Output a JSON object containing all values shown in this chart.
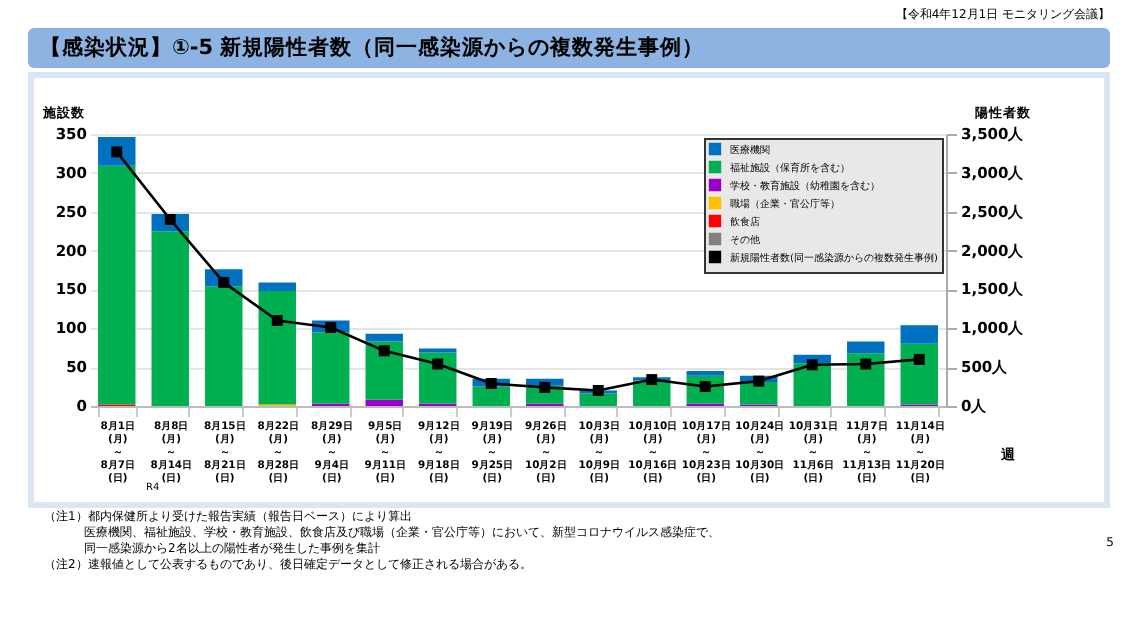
{
  "chart_data": {
    "type": "bar",
    "title": "【感染状況】①-5 新規陽性者数（同一感染源からの複数発生事例）",
    "ylabel": "施設数",
    "y2label": "陽性者数",
    "xlabel": "週",
    "annotations": [
      "【令和4年12月1日 モニタリング会議】",
      "R4",
      "（注1）都内保健所より受けた報告実績（報告日ベース）により算出",
      "医療機関、福祉施設、学校・教育施設、飲食店及び職場（企業・官公庁等）において、新型コロナウイルス感染症で、",
      "同一感染源から2名以上の陽性者が発生した事例を集計",
      "（注2）速報値として公表するものであり、後日確定データとして修正される場合がある。",
      "5"
    ],
    "categories": [
      "8月1日\n(月)\n～\n8月7日\n(日)",
      "8月8日\n(月)\n～\n8月14日\n(日)",
      "8月15日\n(月)\n～\n8月21日\n(日)",
      "8月22日\n(月)\n～\n8月28日\n(日)",
      "8月29日\n(月)\n～\n9月4日\n(日)",
      "9月5日\n(月)\n～\n9月11日\n(日)",
      "9月12日\n(月)\n～\n9月18日\n(日)",
      "9月19日\n(月)\n～\n9月25日\n(日)",
      "9月26日\n(月)\n～\n10月2日\n(日)",
      "10月3日\n(月)\n～\n10月9日\n(日)",
      "10月10日\n(月)\n～\n10月16日\n(日)",
      "10月17日\n(月)\n～\n10月23日\n(日)",
      "10月24日\n(月)\n～\n10月30日\n(日)",
      "10月31日\n(月)\n～\n11月6日\n(日)",
      "11月7日\n(月)\n～\n11月13日\n(日)",
      "11月14日\n(月)\n～\n11月20日\n(日)"
    ],
    "stacked": true,
    "ylim": [
      0,
      350
    ],
    "yticks": [
      0,
      50,
      100,
      150,
      200,
      250,
      300,
      350
    ],
    "y2lim": [
      0,
      3500
    ],
    "y2ticks": [
      {
        "value": 0,
        "label": "0人"
      },
      {
        "value": 500,
        "label": "500人"
      },
      {
        "value": 1000,
        "label": "1,000人"
      },
      {
        "value": 1500,
        "label": "1,500人"
      },
      {
        "value": 2000,
        "label": "2,000人"
      },
      {
        "value": 2500,
        "label": "2,500人"
      },
      {
        "value": 3000,
        "label": "3,000人"
      },
      {
        "value": 3500,
        "label": "3,500人"
      }
    ],
    "grid": "y",
    "legend": "top right",
    "marker": "square",
    "series": [
      {
        "name": "その他",
        "color": "#808080",
        "values": [
          0,
          0,
          0,
          0,
          0,
          0,
          0,
          0,
          0,
          0,
          0,
          0,
          0,
          0,
          0,
          0
        ]
      },
      {
        "name": "飲食店",
        "color": "#ff0000",
        "values": [
          2,
          0,
          0,
          0,
          0,
          0,
          0,
          0,
          0,
          0,
          0,
          0,
          0,
          0,
          0,
          0
        ]
      },
      {
        "name": "職場（企業・官公庁等）",
        "color": "#ffc000",
        "values": [
          0,
          0,
          0,
          2,
          0,
          0,
          0,
          0,
          0,
          0,
          0,
          0,
          0,
          0,
          0,
          0
        ]
      },
      {
        "name": "学校・教育施設（幼稚園を含む）",
        "color": "#9900cc",
        "values": [
          0,
          0,
          0,
          0,
          3,
          8,
          3,
          0,
          3,
          0,
          0,
          3,
          2,
          0,
          0,
          2
        ]
      },
      {
        "name": "福祉施設（保育所を含む）",
        "color": "#00b050",
        "values": [
          307,
          225,
          154,
          146,
          92,
          75,
          66,
          25,
          23,
          16,
          33,
          36,
          29,
          55,
          68,
          78
        ]
      },
      {
        "name": "医療機関",
        "color": "#0070c0",
        "values": [
          37,
          22,
          22,
          11,
          15,
          10,
          5,
          10,
          9,
          4,
          4,
          6,
          8,
          11,
          15,
          24
        ]
      },
      {
        "name": "新規陽性者数(同一感染源からの複数発生事例)",
        "type": "line",
        "axis": "y2",
        "color": "#000000",
        "values": [
          3270,
          2400,
          1590,
          1100,
          1010,
          710,
          540,
          290,
          240,
          200,
          340,
          250,
          320,
          530,
          540,
          600
        ]
      }
    ]
  }
}
